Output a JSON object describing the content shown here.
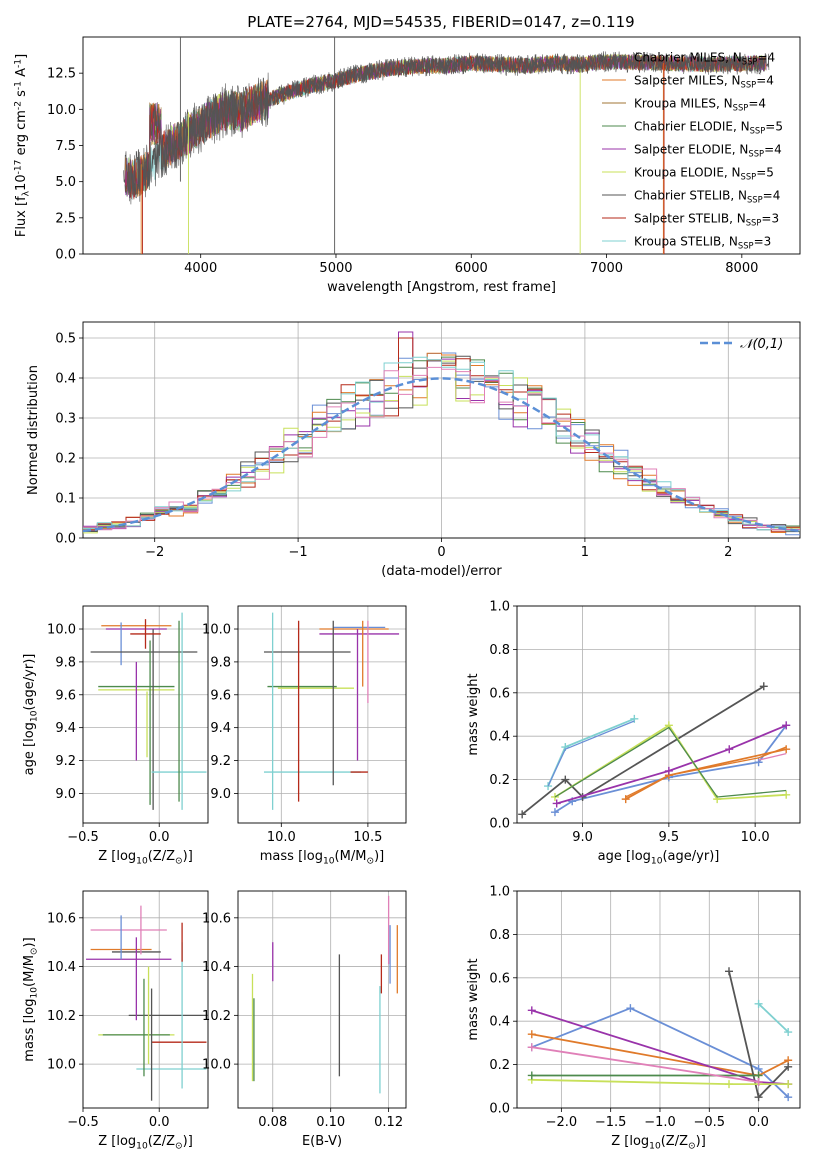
{
  "figure_title": "PLATE=2764, MJD=54535, FIBERID=0147, z=0.119",
  "colors": [
    "#6a8fd6",
    "#e07a2a",
    "#a07535",
    "#4d8a4d",
    "#9933aa",
    "#c8e05a",
    "#555555",
    "#b52a1a",
    "#7fd0d0",
    "#e080b8"
  ],
  "chart_data": [
    {
      "id": "spectrum",
      "type": "line",
      "xlabel": "wavelength [Angstrom, rest frame]",
      "ylabel": "Flux [f$_\\lambda$10$^{-17}$ erg cm$^{-2}$ s$^{-1}$ A$^{-1}$]",
      "xlim": [
        3130,
        8430
      ],
      "ylim": [
        0,
        15
      ],
      "xticks": [
        4000,
        5000,
        6000,
        7000,
        8000
      ],
      "yticks": [
        "0.0",
        "2.5",
        "5.0",
        "7.5",
        "10.0",
        "12.5"
      ],
      "grid": false,
      "legend_position": "right",
      "continuum_points": [
        [
          3430,
          5.5
        ],
        [
          3500,
          5.1
        ],
        [
          3580,
          5.6
        ],
        [
          3650,
          6.2
        ],
        [
          3700,
          7.0
        ],
        [
          3800,
          7.6
        ],
        [
          3900,
          8.2
        ],
        [
          4000,
          8.9
        ],
        [
          4100,
          9.5
        ],
        [
          4200,
          10.0
        ],
        [
          4300,
          9.8
        ],
        [
          4400,
          10.4
        ],
        [
          4600,
          11.0
        ],
        [
          4800,
          11.6
        ],
        [
          5000,
          12.0
        ],
        [
          5200,
          12.5
        ],
        [
          5400,
          12.8
        ],
        [
          5600,
          13.0
        ],
        [
          5800,
          13.0
        ],
        [
          6000,
          13.2
        ],
        [
          6200,
          13.1
        ],
        [
          6400,
          13.0
        ],
        [
          6600,
          13.2
        ],
        [
          6800,
          13.1
        ],
        [
          7000,
          13.3
        ],
        [
          7400,
          13.2
        ],
        [
          7800,
          13.1
        ],
        [
          8200,
          13.2
        ]
      ],
      "series": [
        {
          "name": "Chabrier MILES, N$_{SSP}$=4",
          "values": [
            4.0
          ]
        },
        {
          "name": "Salpeter MILES, N$_{SSP}$=4",
          "values": [
            4.0
          ]
        },
        {
          "name": "Kroupa MILES, N$_{SSP}$=4",
          "values": [
            4.0
          ]
        },
        {
          "name": "Chabrier ELODIE, N$_{SSP}$=5",
          "values": [
            5.0
          ]
        },
        {
          "name": "Salpeter ELODIE, N$_{SSP}$=4",
          "values": [
            4.0
          ]
        },
        {
          "name": "Kroupa ELODIE, N$_{SSP}$=5",
          "values": [
            5.0
          ]
        },
        {
          "name": "Chabrier STELIB, N$_{SSP}$=4",
          "values": [
            4.0
          ]
        },
        {
          "name": "Salpeter STELIB, N$_{SSP}$=3",
          "values": [
            3.0
          ]
        },
        {
          "name": "Kroupa STELIB, N$_{SSP}$=3",
          "values": [
            3.0
          ]
        }
      ]
    },
    {
      "id": "residuals",
      "type": "bar",
      "xlabel": "(data-model)/error",
      "ylabel": "Normed distribution",
      "xlim": [
        -2.5,
        2.5
      ],
      "ylim": [
        0,
        0.54
      ],
      "xticks": [
        "−2",
        "−1",
        "0",
        "1",
        "2"
      ],
      "yticks": [
        "0.0",
        "0.1",
        "0.2",
        "0.3",
        "0.4",
        "0.5"
      ],
      "grid": true,
      "legend_position": "top-right",
      "gaussian_label": "$\\mathcal{N}(0,1)$",
      "bin_width": 0.1,
      "series": [
        {
          "values": [
            0.03,
            0.04,
            0.05,
            0.06,
            0.08,
            0.1,
            0.13,
            0.17,
            0.21,
            0.26,
            0.3,
            0.34,
            0.37,
            0.39,
            0.4,
            0.4,
            0.39,
            0.37,
            0.34,
            0.3,
            0.26,
            0.21,
            0.17,
            0.13,
            0.1,
            0.08,
            0.06,
            0.05,
            0.04,
            0.03
          ]
        }
      ]
    },
    {
      "id": "z-vs-age",
      "type": "scatter",
      "xlabel": "Z [log$_{10}$(Z/Z$_\\odot$)]",
      "ylabel": "age  [log$_{10}$($age/yr$)]",
      "xlim": [
        -0.5,
        0.32
      ],
      "ylim": [
        8.82,
        10.14
      ],
      "xticks": [
        "−0.5",
        "0.0"
      ],
      "yticks": [
        "9.0",
        "9.2",
        "9.4",
        "9.6",
        "9.8",
        "10.0"
      ],
      "grid": true,
      "series": [
        {
          "values": [
            [
              -0.25,
              10.0
            ],
            [
              -0.05,
              10.02
            ],
            [
              -0.15,
              9.64
            ]
          ]
        },
        {
          "values": [
            [
              -0.05,
              10.02
            ],
            [
              0.1,
              9.13
            ]
          ]
        },
        {
          "values": [
            [
              -0.1,
              9.86
            ],
            [
              0.05,
              9.65
            ]
          ]
        }
      ]
    },
    {
      "id": "mass-vs-age",
      "type": "scatter",
      "xlabel": "mass [log$_{10}$($M/M_\\odot$)]",
      "ylabel": "",
      "xlim": [
        9.75,
        10.72
      ],
      "ylim": [
        8.82,
        10.14
      ],
      "xticks": [
        "10.0",
        "10.5"
      ],
      "yticks": [
        "9.0",
        "9.2",
        "9.4",
        "9.6",
        "9.8",
        "10.0"
      ],
      "grid": true,
      "series": [
        {
          "values": [
            [
              10.15,
              9.86
            ],
            [
              10.45,
              10.0
            ],
            [
              10.2,
              9.65
            ]
          ]
        },
        {
          "values": [
            [
              10.3,
              9.13
            ],
            [
              10.12,
              9.5
            ]
          ]
        }
      ]
    },
    {
      "id": "age-vs-massweight",
      "type": "line",
      "xlabel": "age  [log$_{10}$($age/yr$)]",
      "ylabel": "mass weight",
      "xlim": [
        8.62,
        10.26
      ],
      "ylim": [
        0,
        1
      ],
      "xticks": [
        "9.0",
        "9.5",
        "10.0"
      ],
      "yticks": [
        "0.0",
        "0.2",
        "0.4",
        "0.6",
        "0.8",
        "1.0"
      ],
      "grid": true,
      "series": [
        {
          "values": [
            [
              8.84,
              0.05
            ],
            [
              8.94,
              0.1
            ],
            [
              9.5,
              0.21
            ],
            [
              10.02,
              0.28
            ],
            [
              10.18,
              0.45
            ]
          ]
        },
        {
          "values": [
            [
              9.25,
              0.11
            ],
            [
              9.5,
              0.22
            ],
            [
              10.18,
              0.34
            ]
          ]
        },
        {
          "values": [
            [
              8.65,
              0.04
            ],
            [
              8.9,
              0.2
            ],
            [
              9.0,
              0.12
            ],
            [
              10.05,
              0.63
            ]
          ]
        },
        {
          "values": [
            [
              8.85,
              0.09
            ],
            [
              9.5,
              0.24
            ],
            [
              9.85,
              0.34
            ],
            [
              10.18,
              0.45
            ]
          ]
        },
        {
          "values": [
            [
              8.84,
              0.12
            ],
            [
              9.5,
              0.45
            ],
            [
              9.78,
              0.11
            ],
            [
              10.18,
              0.13
            ]
          ]
        },
        {
          "values": [
            [
              8.8,
              0.17
            ],
            [
              8.9,
              0.35
            ],
            [
              9.3,
              0.48
            ]
          ]
        }
      ]
    },
    {
      "id": "z-vs-mass",
      "type": "scatter",
      "xlabel": "Z [log$_{10}$(Z/Z$_\\odot$)]",
      "ylabel": "mass [log$_{10}$($M/M_\\odot$)]",
      "xlim": [
        -0.5,
        0.32
      ],
      "ylim": [
        9.82,
        10.71
      ],
      "xticks": [
        "−0.5",
        "0.0"
      ],
      "yticks": [
        "10.0",
        "10.2",
        "10.4",
        "10.6"
      ],
      "grid": true,
      "series": [
        {
          "values": [
            [
              -0.2,
              10.55
            ],
            [
              -0.1,
              10.46
            ],
            [
              -0.15,
              10.12
            ],
            [
              0.1,
              10.2
            ],
            [
              0.05,
              10.09
            ]
          ]
        }
      ]
    },
    {
      "id": "ebv-vs-mass",
      "type": "scatter",
      "xlabel": "E(B-V)",
      "ylabel": "",
      "xlim": [
        0.068,
        0.126
      ],
      "ylim": [
        9.82,
        10.71
      ],
      "xticks": [
        "0.08",
        "0.10",
        "0.12"
      ],
      "yticks": [
        "10.0",
        "10.2",
        "10.4",
        "10.6"
      ],
      "grid": true,
      "series": [
        {
          "values": [
            [
              0.073,
              10.15
            ],
            [
              0.08,
              10.42
            ],
            [
              0.103,
              10.2
            ],
            [
              0.117,
              10.37
            ],
            [
              0.12,
              10.55
            ],
            [
              0.123,
              10.43
            ]
          ]
        }
      ]
    },
    {
      "id": "z-vs-massweight",
      "type": "line",
      "xlabel": "Z [log$_{10}$(Z/Z$_\\odot$)]",
      "ylabel": "mass weight",
      "xlim": [
        -2.45,
        0.42
      ],
      "ylim": [
        0,
        1
      ],
      "xticks": [
        "−2.0",
        "−1.5",
        "−1.0",
        "−0.5",
        "0.0"
      ],
      "yticks": [
        "0.0",
        "0.2",
        "0.4",
        "0.6",
        "0.8",
        "1.0"
      ],
      "grid": true,
      "series": [
        {
          "values": [
            [
              -2.3,
              0.28
            ],
            [
              -1.3,
              0.46
            ],
            [
              0.0,
              0.18
            ],
            [
              0.3,
              0.05
            ]
          ]
        },
        {
          "values": [
            [
              -2.3,
              0.34
            ],
            [
              0.0,
              0.15
            ],
            [
              0.3,
              0.22
            ]
          ]
        },
        {
          "values": [
            [
              -0.3,
              0.63
            ],
            [
              0.0,
              0.05
            ],
            [
              0.3,
              0.19
            ]
          ]
        },
        {
          "values": [
            [
              -2.3,
              0.45
            ],
            [
              0.0,
              0.12
            ],
            [
              0.3,
              0.11
            ]
          ]
        },
        {
          "values": [
            [
              -2.3,
              0.13
            ],
            [
              -0.3,
              0.11
            ],
            [
              0.3,
              0.11
            ]
          ]
        },
        {
          "values": [
            [
              -2.3,
              0.15
            ],
            [
              0.0,
              0.15
            ]
          ]
        },
        {
          "values": [
            [
              0.0,
              0.48
            ],
            [
              0.3,
              0.35
            ]
          ]
        },
        {
          "values": [
            [
              -2.3,
              0.28
            ],
            [
              0.0,
              0.12
            ]
          ]
        }
      ]
    }
  ]
}
